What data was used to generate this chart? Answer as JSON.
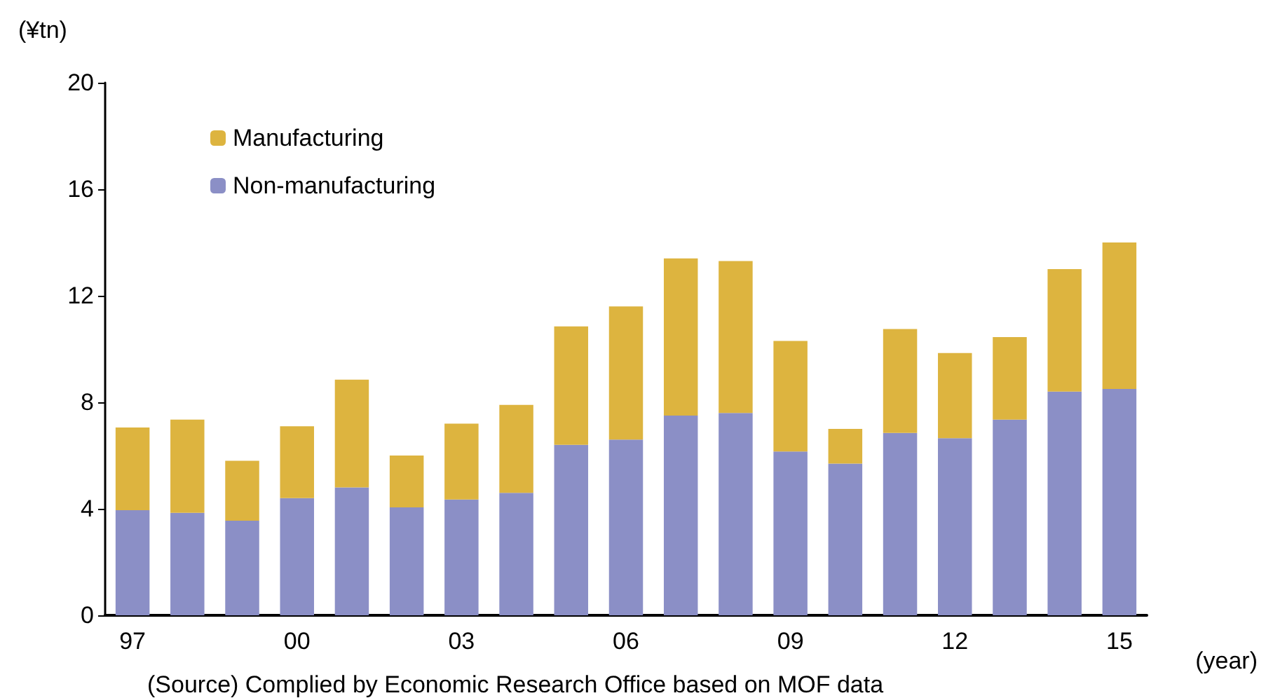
{
  "chart_data": {
    "type": "bar",
    "stacked": true,
    "ylabel": "(¥tn)",
    "xlabel": "(year)",
    "categories": [
      "97",
      null,
      null,
      "00",
      null,
      null,
      "03",
      null,
      null,
      "06",
      null,
      null,
      "09",
      null,
      null,
      "12",
      null,
      null,
      "15"
    ],
    "series": [
      {
        "name": "Non-manufacturing",
        "color": "#8b8fc6",
        "values": [
          3.95,
          3.85,
          3.55,
          4.4,
          4.8,
          4.05,
          4.35,
          4.6,
          6.4,
          6.6,
          7.5,
          7.6,
          6.15,
          5.7,
          6.85,
          6.65,
          7.35,
          8.4,
          8.5
        ]
      },
      {
        "name": "Manufacturing",
        "color": "#ddb43f",
        "values": [
          3.1,
          3.5,
          2.25,
          2.7,
          4.05,
          1.95,
          2.85,
          3.3,
          4.45,
          5.0,
          5.9,
          5.7,
          4.15,
          1.3,
          3.9,
          3.2,
          3.1,
          4.6,
          5.5
        ]
      }
    ],
    "ylim": [
      0,
      20
    ],
    "yticks": [
      0,
      4,
      8,
      12,
      16,
      20
    ],
    "grid": false,
    "legend": "top left",
    "annotations": [
      "(Source) Complied by Economic Research Office based on MOF data"
    ]
  }
}
